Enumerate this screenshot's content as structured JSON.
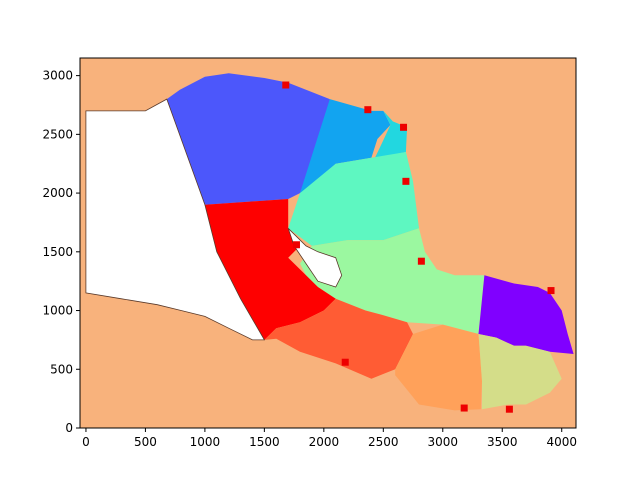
{
  "chart_data": {
    "type": "scatter",
    "title": "",
    "xlabel": "",
    "ylabel": "",
    "xlim": [
      -50,
      4120
    ],
    "ylim": [
      0,
      3150
    ],
    "grid": false,
    "legend": "none",
    "background_color": "#f8b27c",
    "xticks": [
      0,
      500,
      1000,
      1500,
      2000,
      2500,
      3000,
      3500,
      4000
    ],
    "yticks": [
      0,
      500,
      1000,
      1500,
      2000,
      2500,
      3000
    ],
    "regions": [
      {
        "color": "#4c57fb",
        "points": [
          [
            680,
            2800
          ],
          [
            790,
            2880
          ],
          [
            1000,
            2990
          ],
          [
            1200,
            3020
          ],
          [
            1500,
            2980
          ],
          [
            1700,
            2940
          ],
          [
            2050,
            2800
          ],
          [
            2000,
            2500
          ],
          [
            1800,
            2000
          ],
          [
            1700,
            1950
          ],
          [
            1000,
            1900
          ]
        ]
      },
      {
        "color": "#12a4f0",
        "points": [
          [
            2050,
            2800
          ],
          [
            2400,
            2700
          ],
          [
            2500,
            2700
          ],
          [
            2560,
            2580
          ],
          [
            2450,
            2460
          ],
          [
            2400,
            2300
          ],
          [
            2100,
            2250
          ],
          [
            1880,
            2050
          ],
          [
            1800,
            2000
          ]
        ]
      },
      {
        "color": "#22d7e0",
        "points": [
          [
            2500,
            2700
          ],
          [
            2580,
            2610
          ],
          [
            2700,
            2560
          ],
          [
            2690,
            2350
          ],
          [
            2600,
            2330
          ],
          [
            2430,
            2300
          ],
          [
            2500,
            2450
          ],
          [
            2560,
            2580
          ]
        ]
      },
      {
        "color": "#5ef7c1",
        "points": [
          [
            1800,
            2000
          ],
          [
            2100,
            2250
          ],
          [
            2400,
            2300
          ],
          [
            2690,
            2350
          ],
          [
            2750,
            2100
          ],
          [
            2800,
            1700
          ],
          [
            2500,
            1600
          ],
          [
            2200,
            1600
          ],
          [
            1900,
            1550
          ],
          [
            1700,
            1700
          ]
        ]
      },
      {
        "color": "#9bf8a0",
        "points": [
          [
            1900,
            1550
          ],
          [
            2200,
            1600
          ],
          [
            2500,
            1600
          ],
          [
            2800,
            1700
          ],
          [
            2850,
            1500
          ],
          [
            2950,
            1350
          ],
          [
            3100,
            1300
          ],
          [
            3350,
            1300
          ],
          [
            3300,
            800
          ],
          [
            3000,
            880
          ],
          [
            2700,
            900
          ],
          [
            2500,
            960
          ],
          [
            2350,
            1000
          ],
          [
            2100,
            1100
          ],
          [
            1950,
            1200
          ],
          [
            1850,
            1300
          ],
          [
            1800,
            1400
          ]
        ]
      },
      {
        "color": "#8000ff",
        "points": [
          [
            3350,
            1300
          ],
          [
            3600,
            1230
          ],
          [
            3800,
            1200
          ],
          [
            3900,
            1150
          ],
          [
            4000,
            1000
          ],
          [
            4050,
            800
          ],
          [
            4100,
            630
          ],
          [
            3900,
            650
          ],
          [
            3700,
            700
          ],
          [
            3600,
            700
          ],
          [
            3450,
            770
          ],
          [
            3300,
            800
          ]
        ]
      },
      {
        "color": "#fe0000",
        "points": [
          [
            1000,
            1900
          ],
          [
            1700,
            1950
          ],
          [
            1700,
            1700
          ],
          [
            1800,
            1550
          ],
          [
            1700,
            1450
          ],
          [
            1850,
            1300
          ],
          [
            1950,
            1200
          ],
          [
            2100,
            1100
          ],
          [
            2000,
            1000
          ],
          [
            1800,
            900
          ],
          [
            1600,
            850
          ],
          [
            1500,
            750
          ],
          [
            1300,
            1100
          ],
          [
            1100,
            1500
          ]
        ]
      },
      {
        "color": "#ff5c34",
        "points": [
          [
            1500,
            750
          ],
          [
            1600,
            850
          ],
          [
            1800,
            900
          ],
          [
            2000,
            1000
          ],
          [
            2100,
            1100
          ],
          [
            2350,
            1000
          ],
          [
            2500,
            960
          ],
          [
            2700,
            900
          ],
          [
            2750,
            800
          ],
          [
            2600,
            500
          ],
          [
            2400,
            420
          ],
          [
            2100,
            550
          ],
          [
            1800,
            650
          ],
          [
            1600,
            760
          ]
        ]
      },
      {
        "color": "#ffa15a",
        "points": [
          [
            2600,
            500
          ],
          [
            2750,
            800
          ],
          [
            3000,
            880
          ],
          [
            3300,
            800
          ],
          [
            3330,
            400
          ],
          [
            3320,
            160
          ],
          [
            3100,
            150
          ],
          [
            2800,
            200
          ],
          [
            2600,
            450
          ]
        ]
      },
      {
        "color": "#d4dd89",
        "points": [
          [
            3300,
            800
          ],
          [
            3450,
            770
          ],
          [
            3600,
            700
          ],
          [
            3700,
            700
          ],
          [
            3900,
            650
          ],
          [
            4000,
            420
          ],
          [
            3900,
            300
          ],
          [
            3800,
            250
          ],
          [
            3700,
            200
          ],
          [
            3550,
            200
          ],
          [
            3330,
            160
          ],
          [
            3330,
            400
          ]
        ]
      }
    ],
    "white_regions": [
      [
        [
          0,
          2700
        ],
        [
          500,
          2700
        ],
        [
          680,
          2800
        ],
        [
          1000,
          1900
        ],
        [
          1100,
          1500
        ],
        [
          1300,
          1100
        ],
        [
          1500,
          750
        ],
        [
          1400,
          750
        ],
        [
          1200,
          850
        ],
        [
          1000,
          950
        ],
        [
          800,
          1000
        ],
        [
          600,
          1050
        ],
        [
          300,
          1100
        ],
        [
          0,
          1150
        ]
      ],
      [
        [
          1700,
          1700
        ],
        [
          1850,
          1550
        ],
        [
          1950,
          1500
        ],
        [
          2100,
          1450
        ],
        [
          2150,
          1300
        ],
        [
          2100,
          1200
        ],
        [
          1950,
          1250
        ],
        [
          1850,
          1400
        ],
        [
          1750,
          1550
        ]
      ]
    ],
    "points": [
      {
        "x": 1680,
        "y": 2920
      },
      {
        "x": 2370,
        "y": 2710
      },
      {
        "x": 2670,
        "y": 2560
      },
      {
        "x": 2690,
        "y": 2100
      },
      {
        "x": 1770,
        "y": 1560
      },
      {
        "x": 2820,
        "y": 1420
      },
      {
        "x": 3910,
        "y": 1170
      },
      {
        "x": 2180,
        "y": 560
      },
      {
        "x": 3180,
        "y": 170
      },
      {
        "x": 3560,
        "y": 160
      }
    ],
    "marker_color": "#ee0000"
  }
}
